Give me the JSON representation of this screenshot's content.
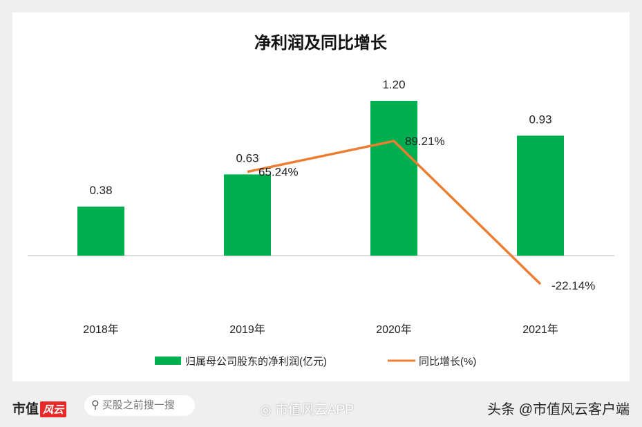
{
  "chart_data": {
    "type": "bar+line",
    "title": "净利润及同比增长",
    "categories": [
      "2018年",
      "2019年",
      "2020年",
      "2021年"
    ],
    "series": [
      {
        "name": "归属母公司股东的净利润(亿元)",
        "type": "bar",
        "color": "#00b050",
        "values": [
          0.38,
          0.63,
          1.2,
          0.93
        ],
        "labels": [
          "0.38",
          "0.63",
          "1.20",
          "0.93"
        ]
      },
      {
        "name": "同比增长(%)",
        "type": "line",
        "color": "#ed7d31",
        "values": [
          null,
          65.24,
          89.21,
          -22.14
        ],
        "labels": [
          "",
          "65.24%",
          "89.21%",
          "-22.14%"
        ]
      }
    ],
    "legend_position": "bottom",
    "grid": false,
    "watermark": "市值风云"
  },
  "footer": {
    "logo_text": "市值",
    "logo_badge": "风云",
    "search_icon": "search-icon",
    "search_placeholder": "买股之前搜一搜",
    "weibo": "市值风云APP",
    "toutiao": "头条 @市值风云客户端"
  }
}
